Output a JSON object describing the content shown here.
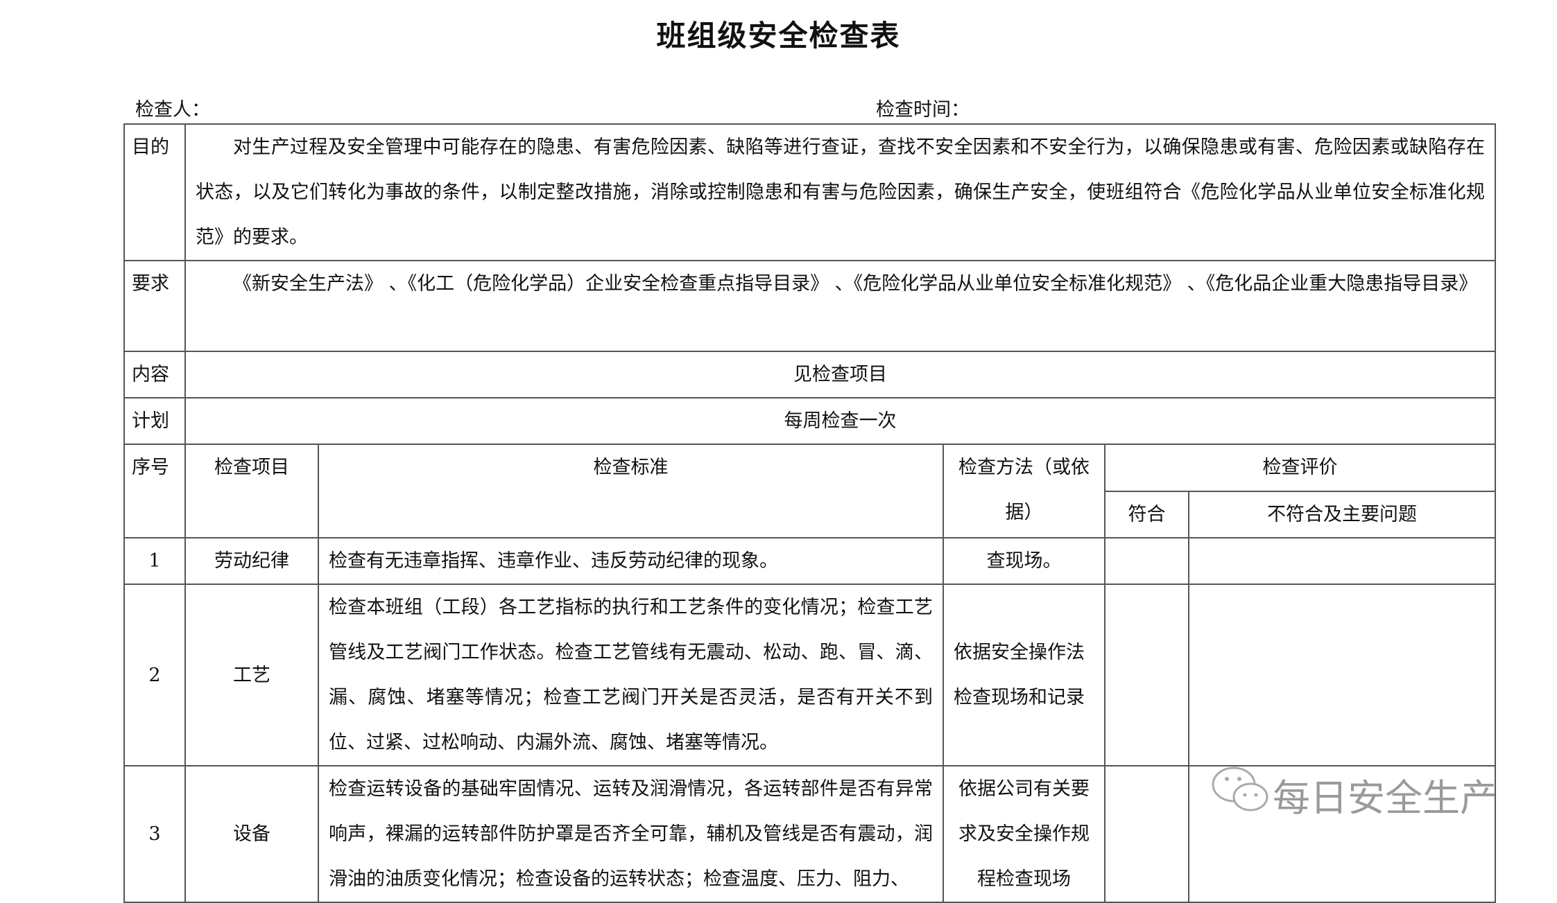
{
  "title": "班组级安全检查表",
  "header": {
    "inspector_label": "检查人：",
    "time_label": "检查时间："
  },
  "info_rows": [
    {
      "label": "目的",
      "text": "对生产过程及安全管理中可能存在的隐患、有害危险因素、缺陷等进行查证，查找不安全因素和不安全行为，以确保隐患或有害、危险因素或缺陷存在状态，以及它们转化为事故的条件，以制定整改措施，消除或控制隐患和有害与危险因素，确保生产安全，使班组符合《危险化学品从业单位安全标准化规范》的要求。"
    },
    {
      "label": "要求",
      "text": "《新安全生产法》 、《化工（危险化学品）企业安全检查重点指导目录》 、《危险化学品从业单位安全标准化规范》 、《危化品企业重大隐患指导目录》"
    },
    {
      "label": "内容",
      "text": "见检查项目"
    },
    {
      "label": "计划",
      "text": "每周检查一次"
    }
  ],
  "columns": {
    "seq": "序号",
    "item": "检查项目",
    "standard": "检查标准",
    "method": "检查方法（或依据）",
    "evaluation": "检查评价",
    "conform": "符合",
    "nonconform": "不符合及主要问题"
  },
  "rows": [
    {
      "seq": "1",
      "item": "劳动纪律",
      "standard": "检查有无违章指挥、违章作业、违反劳动纪律的现象。",
      "method": "查现场。",
      "conform": "",
      "nonconform": ""
    },
    {
      "seq": "2",
      "item": "工艺",
      "standard": "检查本班组（工段）各工艺指标的执行和工艺条件的变化情况；检查工艺管线及工艺阀门工作状态。检查工艺管线有无震动、松动、跑、冒、滴、漏、腐蚀、堵塞等情况；检查工艺阀门开关是否灵活，是否有开关不到位、过紧、过松响动、内漏外流、腐蚀、堵塞等情况。",
      "method": "依据安全操作法检查现场和记录",
      "conform": "",
      "nonconform": ""
    },
    {
      "seq": "3",
      "item": "设备",
      "standard": "检查运转设备的基础牢固情况、运转及润滑情况，各运转部件是否有异常响声，裸漏的运转部件防护罩是否齐全可靠，辅机及管线是否有震动，润滑油的油质变化情况；检查设备的运转状态；检查温度、压力、阻力、",
      "method": "依据公司有关要求及安全操作规程检查现场",
      "conform": "",
      "nonconform": ""
    }
  ],
  "watermark": {
    "text": "每日安全生产",
    "icon": "wechat-icon"
  }
}
